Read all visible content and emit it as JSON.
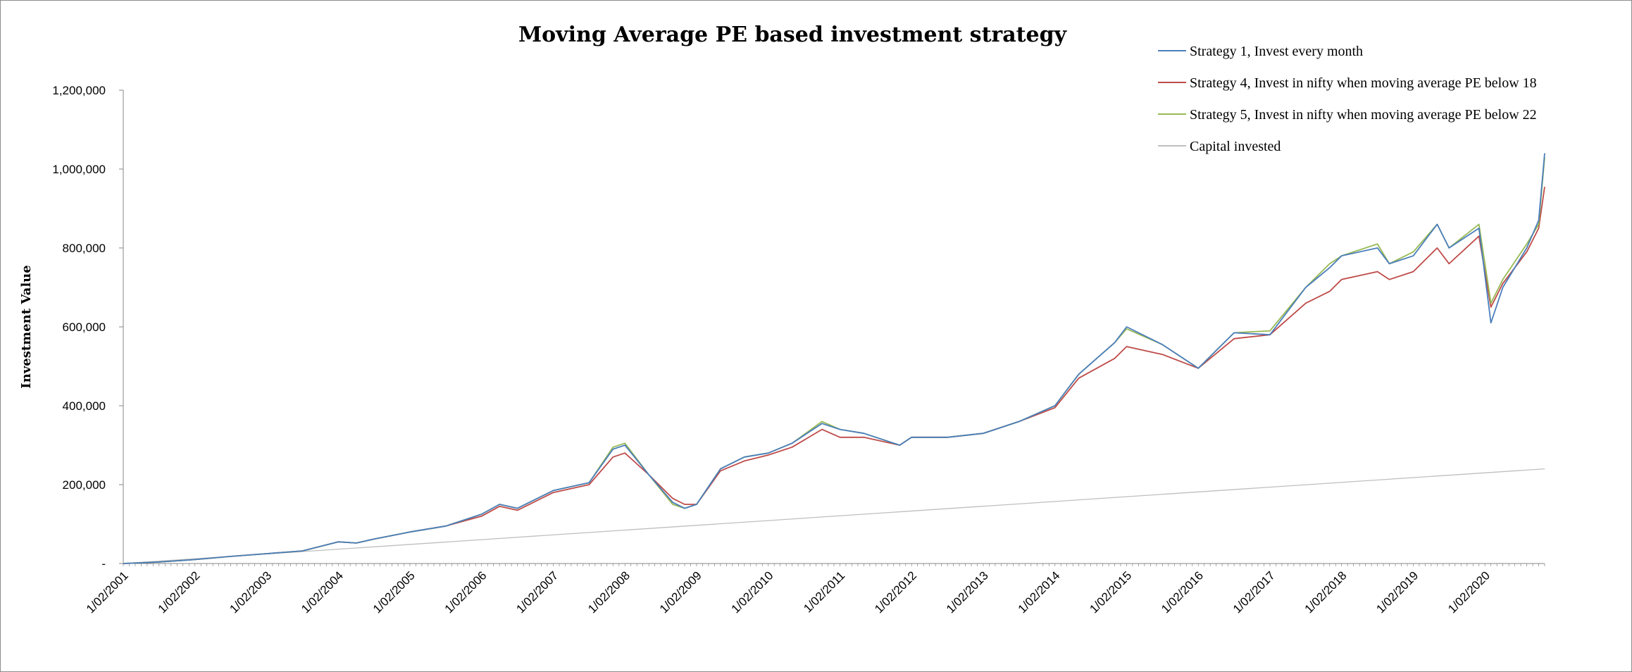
{
  "chart_data": {
    "type": "line",
    "title": "Moving Average PE based investment strategy",
    "xlabel": "",
    "ylabel": "Investment Value",
    "ylim": [
      0,
      1200000
    ],
    "yticks": [
      0,
      200000,
      400000,
      600000,
      800000,
      1000000,
      1200000
    ],
    "ytick_labels": [
      "-",
      "200,000",
      "400,000",
      "600,000",
      "800,000",
      "1,000,000",
      "1,200,000"
    ],
    "xtick_labels": [
      "1/02/2001",
      "1/02/2002",
      "1/02/2003",
      "1/02/2004",
      "1/02/2005",
      "1/02/2006",
      "1/02/2007",
      "1/02/2008",
      "1/02/2009",
      "1/02/2010",
      "1/02/2011",
      "1/02/2012",
      "1/02/2013",
      "1/02/2014",
      "1/02/2015",
      "1/02/2016",
      "1/02/2017",
      "1/02/2018",
      "1/02/2019",
      "1/02/2020"
    ],
    "x_start": "2001-02",
    "x_end": "2020-12",
    "grid": false,
    "legend_position": "top-right",
    "series": [
      {
        "name": "Strategy 1, Invest every month",
        "color": "#4a7ebb",
        "x": [
          "2001-02",
          "2001-08",
          "2002-02",
          "2002-08",
          "2003-02",
          "2003-08",
          "2004-02",
          "2004-05",
          "2004-08",
          "2005-02",
          "2005-08",
          "2006-02",
          "2006-05",
          "2006-08",
          "2007-02",
          "2007-08",
          "2007-12",
          "2008-02",
          "2008-06",
          "2008-10",
          "2008-12",
          "2009-02",
          "2009-06",
          "2009-10",
          "2010-02",
          "2010-06",
          "2010-11",
          "2011-02",
          "2011-06",
          "2011-12",
          "2012-02",
          "2012-08",
          "2013-02",
          "2013-08",
          "2014-02",
          "2014-06",
          "2014-12",
          "2015-02",
          "2015-08",
          "2016-02",
          "2016-08",
          "2017-02",
          "2017-08",
          "2017-12",
          "2018-02",
          "2018-08",
          "2018-10",
          "2019-02",
          "2019-06",
          "2019-08",
          "2020-01",
          "2020-03",
          "2020-05",
          "2020-09",
          "2020-11",
          "2020-12"
        ],
        "values": [
          0,
          4000,
          10000,
          18000,
          25000,
          32000,
          55000,
          52000,
          62000,
          80000,
          95000,
          125000,
          150000,
          140000,
          185000,
          205000,
          290000,
          300000,
          225000,
          155000,
          140000,
          150000,
          240000,
          270000,
          280000,
          305000,
          355000,
          340000,
          330000,
          300000,
          320000,
          320000,
          330000,
          360000,
          400000,
          480000,
          560000,
          600000,
          555000,
          495000,
          585000,
          580000,
          700000,
          750000,
          780000,
          800000,
          760000,
          780000,
          860000,
          800000,
          850000,
          610000,
          700000,
          800000,
          870000,
          1040000
        ]
      },
      {
        "name": "Strategy 4, Invest in nifty when moving average PE below 18",
        "color": "#be4b48",
        "x": [
          "2001-02",
          "2001-08",
          "2002-02",
          "2002-08",
          "2003-02",
          "2003-08",
          "2004-02",
          "2004-05",
          "2004-08",
          "2005-02",
          "2005-08",
          "2006-02",
          "2006-05",
          "2006-08",
          "2007-02",
          "2007-08",
          "2007-12",
          "2008-02",
          "2008-06",
          "2008-10",
          "2008-12",
          "2009-02",
          "2009-06",
          "2009-10",
          "2010-02",
          "2010-06",
          "2010-11",
          "2011-02",
          "2011-06",
          "2011-12",
          "2012-02",
          "2012-08",
          "2013-02",
          "2013-08",
          "2014-02",
          "2014-06",
          "2014-12",
          "2015-02",
          "2015-08",
          "2016-02",
          "2016-08",
          "2017-02",
          "2017-08",
          "2017-12",
          "2018-02",
          "2018-08",
          "2018-10",
          "2019-02",
          "2019-06",
          "2019-08",
          "2020-01",
          "2020-03",
          "2020-05",
          "2020-09",
          "2020-11",
          "2020-12"
        ],
        "values": [
          0,
          4000,
          10000,
          18000,
          25000,
          32000,
          55000,
          52000,
          62000,
          80000,
          95000,
          120000,
          145000,
          135000,
          180000,
          200000,
          270000,
          280000,
          225000,
          165000,
          150000,
          150000,
          235000,
          260000,
          275000,
          295000,
          340000,
          320000,
          320000,
          300000,
          320000,
          320000,
          330000,
          360000,
          395000,
          470000,
          520000,
          550000,
          530000,
          495000,
          570000,
          580000,
          660000,
          690000,
          720000,
          740000,
          720000,
          740000,
          800000,
          760000,
          830000,
          650000,
          710000,
          790000,
          850000,
          955000
        ]
      },
      {
        "name": "Strategy 5, Invest in nifty when moving average PE below 22",
        "color": "#98b954",
        "x": [
          "2001-02",
          "2001-08",
          "2002-02",
          "2002-08",
          "2003-02",
          "2003-08",
          "2004-02",
          "2004-05",
          "2004-08",
          "2005-02",
          "2005-08",
          "2006-02",
          "2006-05",
          "2006-08",
          "2007-02",
          "2007-08",
          "2007-12",
          "2008-02",
          "2008-06",
          "2008-10",
          "2008-12",
          "2009-02",
          "2009-06",
          "2009-10",
          "2010-02",
          "2010-06",
          "2010-11",
          "2011-02",
          "2011-06",
          "2011-12",
          "2012-02",
          "2012-08",
          "2013-02",
          "2013-08",
          "2014-02",
          "2014-06",
          "2014-12",
          "2015-02",
          "2015-08",
          "2016-02",
          "2016-08",
          "2017-02",
          "2017-08",
          "2017-12",
          "2018-02",
          "2018-08",
          "2018-10",
          "2019-02",
          "2019-06",
          "2019-08",
          "2020-01",
          "2020-03",
          "2020-05",
          "2020-09",
          "2020-11",
          "2020-12"
        ],
        "values": [
          0,
          4000,
          10000,
          18000,
          25000,
          32000,
          55000,
          52000,
          62000,
          80000,
          95000,
          125000,
          150000,
          140000,
          185000,
          205000,
          295000,
          305000,
          225000,
          150000,
          140000,
          150000,
          240000,
          270000,
          280000,
          305000,
          360000,
          340000,
          330000,
          300000,
          320000,
          320000,
          330000,
          360000,
          400000,
          480000,
          560000,
          595000,
          555000,
          495000,
          585000,
          590000,
          700000,
          760000,
          780000,
          810000,
          760000,
          790000,
          860000,
          800000,
          860000,
          660000,
          720000,
          810000,
          860000,
          1030000
        ]
      },
      {
        "name": "Capital invested",
        "color": "#bfbfbf",
        "x": [
          "2001-02",
          "2020-12"
        ],
        "values": [
          0,
          240000
        ]
      }
    ]
  }
}
